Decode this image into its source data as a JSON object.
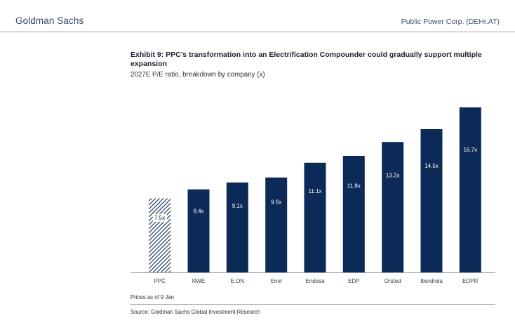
{
  "header": {
    "brand": "Goldman Sachs",
    "company": "Public Power Corp. (DEHr.AT)"
  },
  "exhibit": {
    "title": "Exhibit 9: PPC’s transformation into an Electrification Compounder could gradually support multiple expansion",
    "subtitle": "2027E P/E ratio, breakdown by company (x)"
  },
  "footer": {
    "note": "Prices as of 9 Jan",
    "source": "Source: Goldman Sachs Global Investment Research"
  },
  "colors": {
    "bar": "#0c2a57",
    "hatch": "#0c2a57",
    "axis": "#9aa3ad"
  },
  "chart_data": {
    "type": "bar",
    "categories": [
      "PPC",
      "RWE",
      "E.ON",
      "Enel",
      "Endesa",
      "EDP",
      "Orsted",
      "Iberdrola",
      "EDPR"
    ],
    "values": [
      7.5,
      8.4,
      9.1,
      9.6,
      11.1,
      11.8,
      13.2,
      14.5,
      16.7
    ],
    "value_labels": [
      "7.5x",
      "8.4x",
      "9.1x",
      "9.6x",
      "11.1x",
      "11.8x",
      "13.2x",
      "14.5x",
      "16.7x"
    ],
    "highlight": "PPC",
    "highlight_style": "hatched",
    "title": "Exhibit 9: PPC’s transformation into an Electrification Compounder could gradually support multiple expansion",
    "subtitle": "2027E P/E ratio, breakdown by company (x)",
    "xlabel": "",
    "ylabel": "",
    "ylim": [
      0,
      17.2
    ],
    "grid": false,
    "legend": "none"
  }
}
